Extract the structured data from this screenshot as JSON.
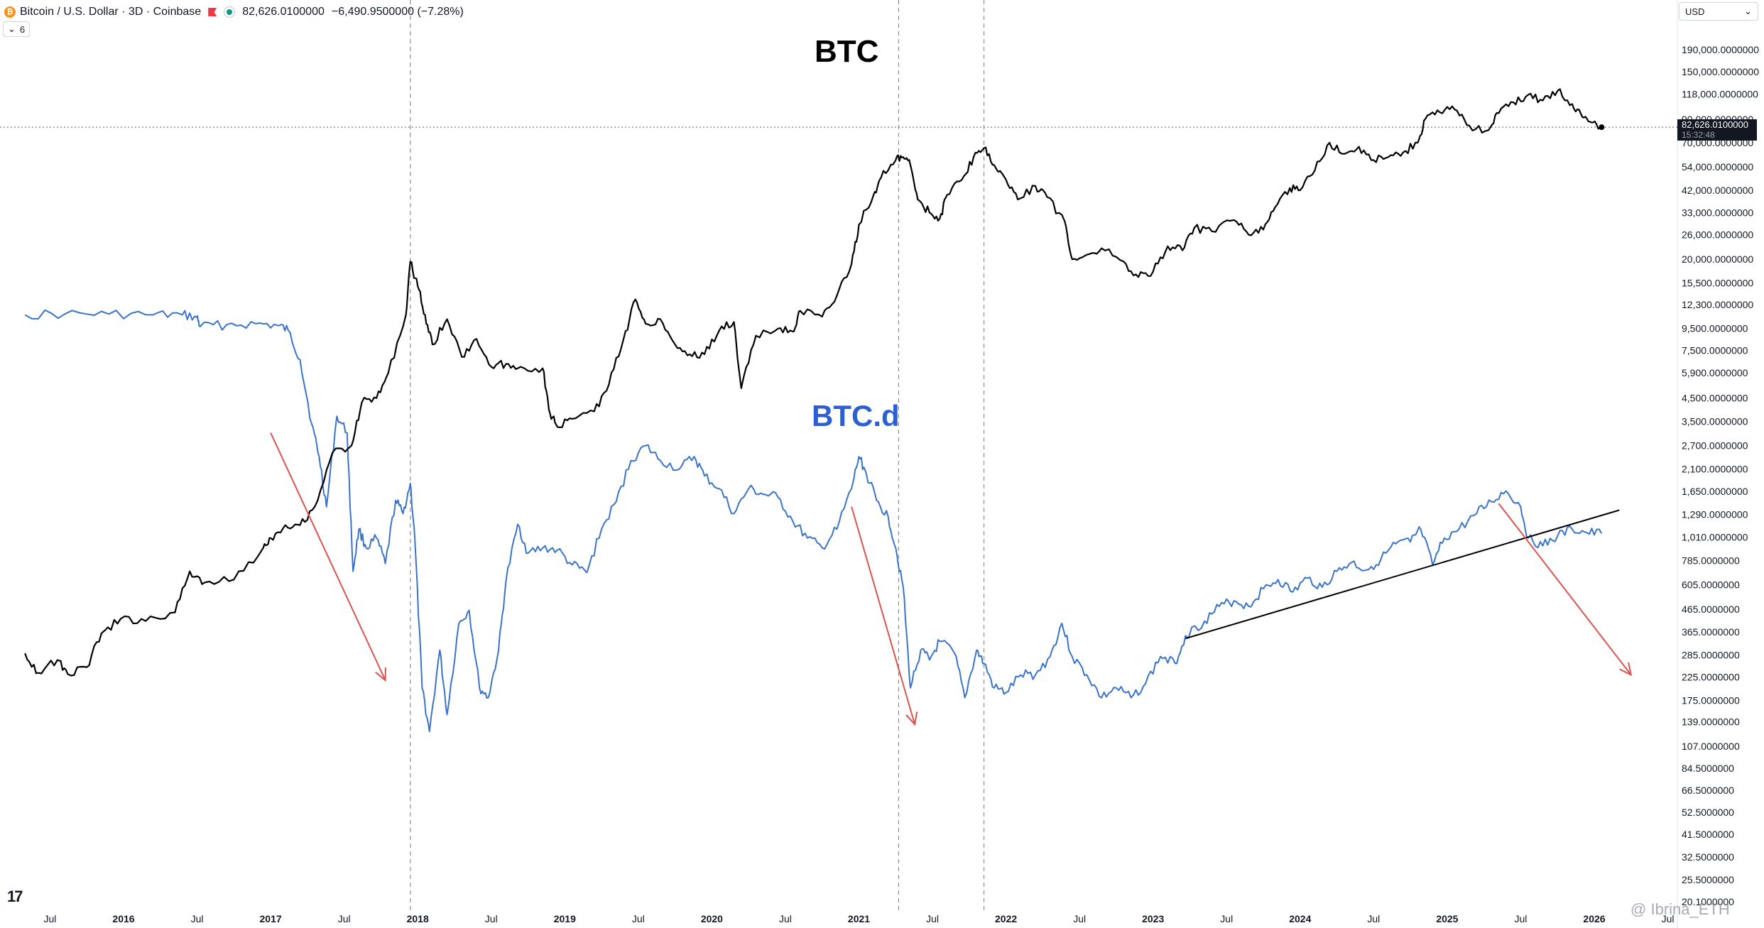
{
  "header": {
    "symbol_title": "Bitcoin / U.S. Dollar · 3D · Coinbase",
    "last_price": "82,626.0100000",
    "change": "−6,490.9500000 (−7.28%)",
    "coin_glyph": "₿",
    "indicators_count": "6"
  },
  "currency_selector": {
    "label": "USD",
    "arrow": "⌄"
  },
  "price_tag": {
    "price": "82,626.0100000",
    "countdown": "15:32:48"
  },
  "labels": {
    "btc": "BTC",
    "btcd": "BTC.d"
  },
  "watermark": "Ibrina_ETH",
  "watermark_icon": "@",
  "logo_text": "17",
  "colors": {
    "btc_line": "#000000",
    "btcd_line": "#3a73c9",
    "arrows": "#d9534f",
    "trendline": "#000000"
  },
  "chart_data": {
    "type": "line",
    "title": "",
    "y_scale": "log",
    "y_ticks": [
      "190,000.0000000",
      "150,000.0000000",
      "118,000.0000000",
      "90,000.0000000",
      "70,000.0000000",
      "54,000.0000000",
      "42,000.0000000",
      "33,000.0000000",
      "26,000.0000000",
      "20,000.0000000",
      "15,500.0000000",
      "12,300.0000000",
      "9,500.0000000",
      "7,500.0000000",
      "5,900.0000000",
      "4,500.0000000",
      "3,500.0000000",
      "2,700.0000000",
      "2,100.0000000",
      "1,650.0000000",
      "1,290.0000000",
      "1,010.0000000",
      "785.0000000",
      "605.0000000",
      "465.0000000",
      "365.0000000",
      "285.0000000",
      "225.0000000",
      "175.0000000",
      "139.0000000",
      "107.0000000",
      "84.5000000",
      "66.5000000",
      "52.5000000",
      "41.5000000",
      "32.5000000",
      "25.5000000",
      "20.1000000"
    ],
    "y_tick_values": [
      190000,
      150000,
      118000,
      90000,
      70000,
      54000,
      42000,
      33000,
      26000,
      20000,
      15500,
      12300,
      9500,
      7500,
      5900,
      4500,
      3500,
      2700,
      2100,
      1650,
      1290,
      1010,
      785,
      605,
      465,
      365,
      285,
      225,
      175,
      139,
      107,
      84.5,
      66.5,
      52.5,
      41.5,
      32.5,
      25.5,
      20.1
    ],
    "x_ticks": [
      "Jul",
      "2016",
      "Jul",
      "2017",
      "Jul",
      "2018",
      "Jul",
      "2019",
      "Jul",
      "2020",
      "Jul",
      "2021",
      "Jul",
      "2022",
      "Jul",
      "2023",
      "Jul",
      "2024",
      "Jul",
      "2025",
      "Jul",
      "2026",
      "Jul"
    ],
    "x_tick_values": [
      2015.5,
      2016,
      2016.5,
      2017,
      2017.5,
      2018,
      2018.5,
      2019,
      2019.5,
      2020,
      2020.5,
      2021,
      2021.5,
      2022,
      2022.5,
      2023,
      2023.5,
      2024,
      2024.5,
      2025,
      2025.5,
      2026,
      2026.5
    ],
    "x_range": [
      2015.33,
      2026.86
    ],
    "series": [
      {
        "name": "BTC",
        "points": [
          [
            2015.33,
            290
          ],
          [
            2015.42,
            235
          ],
          [
            2015.55,
            270
          ],
          [
            2015.62,
            232
          ],
          [
            2015.75,
            250
          ],
          [
            2015.85,
            360
          ],
          [
            2015.98,
            420
          ],
          [
            2016.15,
            410
          ],
          [
            2016.35,
            450
          ],
          [
            2016.45,
            700
          ],
          [
            2016.55,
            620
          ],
          [
            2016.75,
            640
          ],
          [
            2016.95,
            900
          ],
          [
            2017.0,
            1000
          ],
          [
            2017.1,
            1150
          ],
          [
            2017.2,
            1150
          ],
          [
            2017.3,
            1400
          ],
          [
            2017.42,
            2500
          ],
          [
            2017.55,
            2700
          ],
          [
            2017.62,
            4300
          ],
          [
            2017.72,
            4500
          ],
          [
            2017.8,
            5900
          ],
          [
            2017.92,
            11000
          ],
          [
            2017.95,
            19500
          ],
          [
            2018.0,
            15000
          ],
          [
            2018.05,
            11000
          ],
          [
            2018.1,
            8000
          ],
          [
            2018.2,
            10500
          ],
          [
            2018.3,
            7000
          ],
          [
            2018.4,
            8500
          ],
          [
            2018.5,
            6300
          ],
          [
            2018.6,
            6500
          ],
          [
            2018.7,
            6300
          ],
          [
            2018.85,
            6200
          ],
          [
            2018.9,
            3800
          ],
          [
            2018.95,
            3300
          ],
          [
            2019.05,
            3600
          ],
          [
            2019.2,
            3900
          ],
          [
            2019.3,
            5200
          ],
          [
            2019.4,
            8500
          ],
          [
            2019.48,
            13000
          ],
          [
            2019.55,
            10000
          ],
          [
            2019.65,
            10500
          ],
          [
            2019.75,
            8000
          ],
          [
            2019.85,
            7200
          ],
          [
            2019.95,
            7200
          ],
          [
            2020.05,
            9300
          ],
          [
            2020.15,
            10200
          ],
          [
            2020.2,
            5000
          ],
          [
            2020.3,
            8800
          ],
          [
            2020.45,
            9500
          ],
          [
            2020.55,
            9200
          ],
          [
            2020.6,
            11500
          ],
          [
            2020.75,
            10800
          ],
          [
            2020.85,
            13500
          ],
          [
            2020.95,
            19000
          ],
          [
            2021.0,
            29000
          ],
          [
            2021.1,
            40000
          ],
          [
            2021.15,
            48000
          ],
          [
            2021.25,
            58000
          ],
          [
            2021.3,
            60000
          ],
          [
            2021.35,
            55000
          ],
          [
            2021.4,
            38000
          ],
          [
            2021.48,
            33000
          ],
          [
            2021.55,
            31000
          ],
          [
            2021.6,
            40000
          ],
          [
            2021.7,
            47000
          ],
          [
            2021.78,
            60000
          ],
          [
            2021.85,
            66000
          ],
          [
            2021.92,
            55000
          ],
          [
            2022.0,
            47000
          ],
          [
            2022.08,
            38000
          ],
          [
            2022.2,
            44000
          ],
          [
            2022.28,
            39000
          ],
          [
            2022.4,
            30000
          ],
          [
            2022.45,
            20000
          ],
          [
            2022.55,
            21000
          ],
          [
            2022.65,
            22500
          ],
          [
            2022.8,
            19500
          ],
          [
            2022.9,
            16500
          ],
          [
            2023.0,
            17500
          ],
          [
            2023.1,
            23000
          ],
          [
            2023.2,
            22000
          ],
          [
            2023.28,
            28000
          ],
          [
            2023.4,
            27000
          ],
          [
            2023.55,
            30500
          ],
          [
            2023.65,
            26000
          ],
          [
            2023.75,
            27500
          ],
          [
            2023.83,
            35000
          ],
          [
            2023.93,
            43000
          ],
          [
            2024.0,
            42000
          ],
          [
            2024.1,
            52000
          ],
          [
            2024.2,
            70000
          ],
          [
            2024.3,
            62000
          ],
          [
            2024.4,
            67000
          ],
          [
            2024.5,
            58000
          ],
          [
            2024.6,
            60000
          ],
          [
            2024.7,
            63000
          ],
          [
            2024.8,
            70000
          ],
          [
            2024.85,
            90000
          ],
          [
            2024.95,
            97000
          ],
          [
            2025.05,
            100000
          ],
          [
            2025.15,
            84000
          ],
          [
            2025.28,
            80000
          ],
          [
            2025.35,
            96000
          ],
          [
            2025.45,
            108000
          ],
          [
            2025.55,
            117000
          ],
          [
            2025.65,
            110000
          ],
          [
            2025.75,
            122000
          ],
          [
            2025.85,
            106000
          ],
          [
            2025.92,
            92000
          ],
          [
            2025.98,
            87000
          ],
          [
            2026.05,
            82626
          ]
        ]
      },
      {
        "name": "BTC.d",
        "points": [
          [
            2015.33,
            11000
          ],
          [
            2015.6,
            11100
          ],
          [
            2015.9,
            11100
          ],
          [
            2016.2,
            11000
          ],
          [
            2016.4,
            11000
          ],
          [
            2016.5,
            10700
          ],
          [
            2016.52,
            9700
          ],
          [
            2016.7,
            9900
          ],
          [
            2016.9,
            10000
          ],
          [
            2017.05,
            9800
          ],
          [
            2017.12,
            9300
          ],
          [
            2017.2,
            6800
          ],
          [
            2017.28,
            3400
          ],
          [
            2017.33,
            2400
          ],
          [
            2017.38,
            1400
          ],
          [
            2017.45,
            3700
          ],
          [
            2017.52,
            3100
          ],
          [
            2017.56,
            700
          ],
          [
            2017.6,
            1100
          ],
          [
            2017.65,
            900
          ],
          [
            2017.72,
            1000
          ],
          [
            2017.78,
            760
          ],
          [
            2017.85,
            1500
          ],
          [
            2017.9,
            1300
          ],
          [
            2017.95,
            1800
          ],
          [
            2017.98,
            1000
          ],
          [
            2018.03,
            200
          ],
          [
            2018.08,
            125
          ],
          [
            2018.15,
            300
          ],
          [
            2018.2,
            150
          ],
          [
            2018.28,
            400
          ],
          [
            2018.35,
            460
          ],
          [
            2018.42,
            200
          ],
          [
            2018.48,
            180
          ],
          [
            2018.55,
            300
          ],
          [
            2018.6,
            630
          ],
          [
            2018.68,
            1160
          ],
          [
            2018.75,
            850
          ],
          [
            2018.85,
            900
          ],
          [
            2018.95,
            880
          ],
          [
            2019.05,
            750
          ],
          [
            2019.15,
            690
          ],
          [
            2019.25,
            1100
          ],
          [
            2019.35,
            1480
          ],
          [
            2019.45,
            2300
          ],
          [
            2019.55,
            2700
          ],
          [
            2019.65,
            2300
          ],
          [
            2019.78,
            2100
          ],
          [
            2019.88,
            2400
          ],
          [
            2019.95,
            1950
          ],
          [
            2020.05,
            1700
          ],
          [
            2020.15,
            1300
          ],
          [
            2020.25,
            1700
          ],
          [
            2020.35,
            1600
          ],
          [
            2020.45,
            1550
          ],
          [
            2020.55,
            1200
          ],
          [
            2020.65,
            1000
          ],
          [
            2020.75,
            900
          ],
          [
            2020.85,
            1100
          ],
          [
            2020.95,
            1700
          ],
          [
            2021.0,
            2400
          ],
          [
            2021.05,
            2000
          ],
          [
            2021.12,
            1500
          ],
          [
            2021.2,
            1250
          ],
          [
            2021.25,
            900
          ],
          [
            2021.3,
            600
          ],
          [
            2021.35,
            200
          ],
          [
            2021.42,
            300
          ],
          [
            2021.48,
            270
          ],
          [
            2021.55,
            330
          ],
          [
            2021.65,
            290
          ],
          [
            2021.72,
            180
          ],
          [
            2021.8,
            300
          ],
          [
            2021.85,
            260
          ],
          [
            2021.92,
            200
          ],
          [
            2022.0,
            190
          ],
          [
            2022.1,
            230
          ],
          [
            2022.2,
            230
          ],
          [
            2022.3,
            280
          ],
          [
            2022.38,
            400
          ],
          [
            2022.45,
            280
          ],
          [
            2022.55,
            230
          ],
          [
            2022.65,
            180
          ],
          [
            2022.75,
            200
          ],
          [
            2022.85,
            180
          ],
          [
            2022.95,
            210
          ],
          [
            2023.05,
            280
          ],
          [
            2023.15,
            260
          ],
          [
            2023.22,
            350
          ],
          [
            2023.35,
            410
          ],
          [
            2023.45,
            480
          ],
          [
            2023.55,
            510
          ],
          [
            2023.65,
            480
          ],
          [
            2023.75,
            580
          ],
          [
            2023.85,
            640
          ],
          [
            2023.95,
            560
          ],
          [
            2024.05,
            650
          ],
          [
            2024.15,
            590
          ],
          [
            2024.25,
            700
          ],
          [
            2024.35,
            770
          ],
          [
            2024.45,
            710
          ],
          [
            2024.55,
            800
          ],
          [
            2024.65,
            940
          ],
          [
            2024.75,
            960
          ],
          [
            2024.82,
            1100
          ],
          [
            2024.9,
            750
          ],
          [
            2024.98,
            1000
          ],
          [
            2025.08,
            1100
          ],
          [
            2025.2,
            1300
          ],
          [
            2025.3,
            1480
          ],
          [
            2025.4,
            1660
          ],
          [
            2025.5,
            1400
          ],
          [
            2025.55,
            1000
          ],
          [
            2025.65,
            920
          ],
          [
            2025.75,
            1020
          ],
          [
            2025.85,
            1100
          ],
          [
            2025.95,
            1060
          ],
          [
            2026.05,
            1050
          ]
        ]
      }
    ],
    "annotations": {
      "price_line": 82626,
      "vertical_lines_x": [
        2017.95,
        2021.27,
        2021.85
      ],
      "trendline": [
        [
          2023.22,
          340
        ],
        [
          2026.17,
          1350
        ]
      ],
      "arrows": [
        [
          [
            2017.0,
            3100
          ],
          [
            2017.78,
            217
          ]
        ],
        [
          [
            2020.95,
            1400
          ],
          [
            2021.38,
            135
          ]
        ],
        [
          [
            2025.35,
            1450
          ],
          [
            2026.25,
            230
          ]
        ]
      ]
    }
  }
}
